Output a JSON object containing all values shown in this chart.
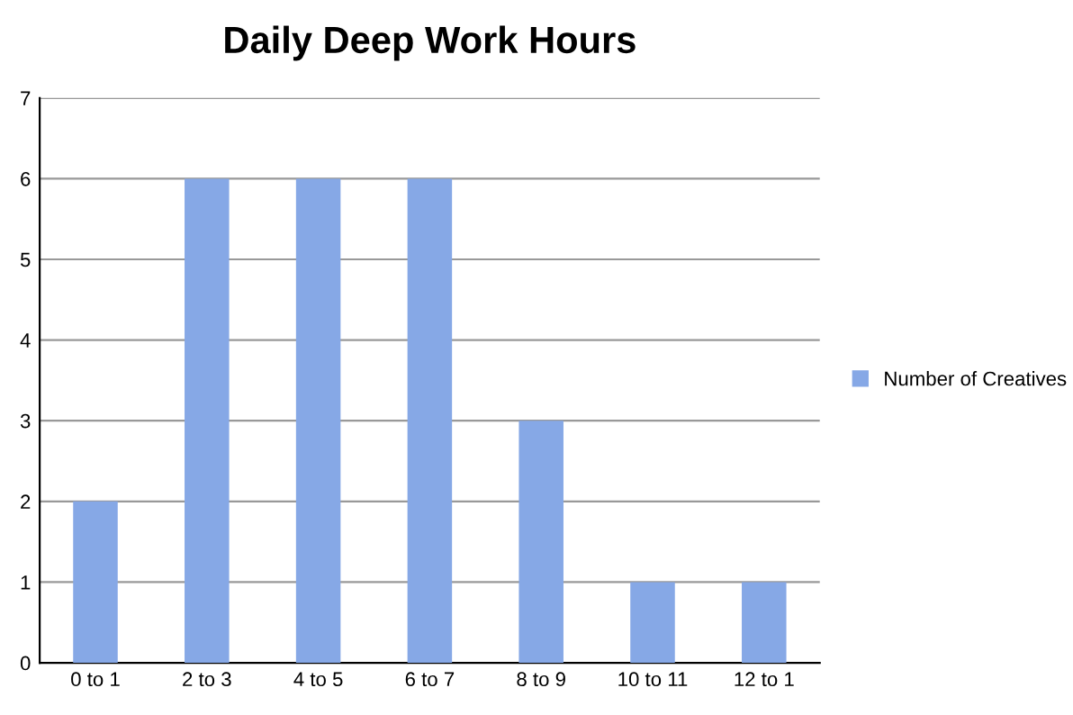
{
  "chart_data": {
    "type": "bar",
    "title": "Daily Deep Work Hours",
    "categories": [
      "0 to 1",
      "2 to 3",
      "4 to 5",
      "6 to 7",
      "8 to 9",
      "10 to 11",
      "12 to 1"
    ],
    "series": [
      {
        "name": "Number of Creatives",
        "color": "#86a8e6",
        "values": [
          2,
          6,
          6,
          6,
          3,
          1,
          1
        ]
      }
    ],
    "ylim": [
      0,
      7
    ],
    "yticks": [
      0,
      1,
      2,
      3,
      4,
      5,
      6,
      7
    ],
    "grid": "y",
    "legend": "right"
  }
}
